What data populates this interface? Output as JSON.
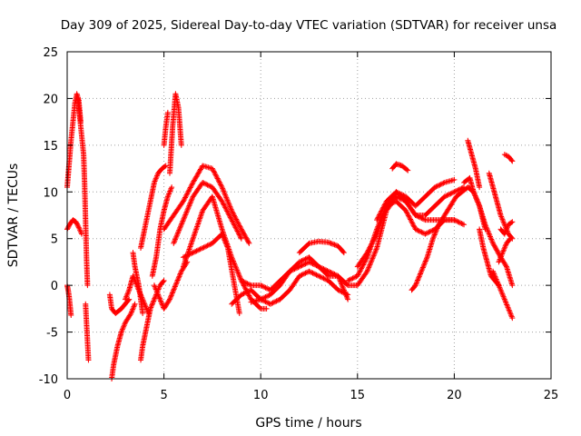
{
  "chart_data": {
    "type": "scatter",
    "title": "Day 309 of 2025, Sidereal Day-to-day VTEC variation (SDTVAR) for receiver unsa",
    "xlabel": "GPS time / hours",
    "ylabel": "SDTVAR / TECUs",
    "xlim": [
      0,
      25
    ],
    "ylim": [
      -10,
      25
    ],
    "xticks": [
      "0",
      "5",
      "10",
      "15",
      "20",
      "25"
    ],
    "yticks": [
      "-10",
      "-5",
      "0",
      "5",
      "10",
      "15",
      "20",
      "25"
    ],
    "grid": true,
    "marker": "+",
    "series_color": "#ff0000",
    "series": [
      {
        "name": "a1",
        "x": [
          0.0,
          0.1,
          0.2,
          0.3,
          0.4,
          0.5,
          0.6,
          0.7
        ],
        "y": [
          10.5,
          13,
          15.5,
          17.5,
          19.5,
          20.5,
          19.8,
          17.5
        ]
      },
      {
        "name": "a2",
        "x": [
          0.55,
          0.65,
          0.75,
          0.85,
          0.9,
          0.95,
          1.0,
          1.05
        ],
        "y": [
          20,
          18,
          16,
          14,
          11,
          7,
          3,
          0
        ]
      },
      {
        "name": "a3",
        "x": [
          0.0,
          0.15,
          0.3,
          0.45,
          0.6,
          0.75
        ],
        "y": [
          6,
          6.6,
          7,
          6.8,
          6.2,
          5.5
        ]
      },
      {
        "name": "a4",
        "x": [
          0.0,
          0.05,
          0.1,
          0.15,
          0.2
        ],
        "y": [
          0,
          -0.5,
          -1.2,
          -2.2,
          -3.2
        ]
      },
      {
        "name": "a5",
        "x": [
          0.95,
          1.0,
          1.05,
          1.1
        ],
        "y": [
          -2,
          -4,
          -6,
          -8
        ]
      },
      {
        "name": "b1",
        "x": [
          2.2,
          2.3,
          2.5,
          2.8,
          3.0,
          3.2
        ],
        "y": [
          -1,
          -2.5,
          -3,
          -2.5,
          -2,
          -1.5
        ]
      },
      {
        "name": "b2",
        "x": [
          2.3,
          2.4,
          2.6,
          2.8,
          3.0,
          3.3,
          3.5
        ],
        "y": [
          -10,
          -8.5,
          -6.5,
          -5,
          -4,
          -3,
          -2
        ]
      },
      {
        "name": "b3",
        "x": [
          3.0,
          3.2,
          3.4,
          3.6,
          3.8,
          4.0,
          4.2
        ],
        "y": [
          -1.5,
          -0.5,
          1,
          0,
          -1,
          -2,
          -3
        ]
      },
      {
        "name": "b4",
        "x": [
          3.8,
          3.9,
          4.1,
          4.3,
          4.6,
          4.8,
          5.0
        ],
        "y": [
          -8,
          -6.5,
          -4.5,
          -2.5,
          -1,
          0,
          0.5
        ]
      },
      {
        "name": "b5",
        "x": [
          3.4,
          3.5,
          3.7,
          3.8,
          3.9
        ],
        "y": [
          3.5,
          2,
          0,
          -1.5,
          -3
        ]
      },
      {
        "name": "c1",
        "x": [
          3.8,
          4.0,
          4.3,
          4.5,
          4.7,
          4.9,
          5.1
        ],
        "y": [
          4,
          6,
          9,
          11,
          12,
          12.5,
          12.8
        ]
      },
      {
        "name": "c2",
        "x": [
          4.4,
          4.6,
          4.8,
          5.0,
          5.2,
          5.4
        ],
        "y": [
          1,
          3,
          6,
          8,
          9.5,
          10.5
        ]
      },
      {
        "name": "c3",
        "x": [
          5.3,
          5.45,
          5.6,
          5.75,
          5.9
        ],
        "y": [
          12,
          17,
          20.5,
          19,
          15
        ]
      },
      {
        "name": "c4",
        "x": [
          5.0,
          5.1,
          5.2
        ],
        "y": [
          15,
          17,
          18.5
        ]
      },
      {
        "name": "c5",
        "x": [
          4.5,
          4.7,
          5.0,
          5.3,
          5.6,
          5.9,
          6.2
        ],
        "y": [
          0,
          -1,
          -2.5,
          -1.5,
          0,
          1.5,
          2.5
        ]
      },
      {
        "name": "d1",
        "x": [
          5.0,
          5.5,
          6.0,
          6.5,
          7.0,
          7.5,
          8.0,
          8.5,
          9.0,
          9.4
        ],
        "y": [
          6,
          7.5,
          9,
          11,
          12.8,
          12.5,
          10.5,
          8,
          6,
          4.5
        ]
      },
      {
        "name": "d2",
        "x": [
          5.5,
          6.0,
          6.5,
          7.0,
          7.5,
          8.0,
          8.5,
          9.0
        ],
        "y": [
          4.5,
          7,
          9.5,
          11,
          10.5,
          9,
          7,
          5
        ]
      },
      {
        "name": "d3",
        "x": [
          6.0,
          6.5,
          7.0,
          7.5,
          8.0,
          8.5,
          9.0,
          9.5,
          10.0,
          10.3
        ],
        "y": [
          2,
          5,
          8,
          9.5,
          6,
          3,
          0.5,
          -1.5,
          -2.5,
          -2.5
        ]
      },
      {
        "name": "d4",
        "x": [
          6.0,
          6.5,
          7.0,
          7.5,
          8.0,
          8.3,
          8.6,
          8.9
        ],
        "y": [
          3,
          3.5,
          4,
          4.5,
          5.5,
          4,
          0.5,
          -3
        ]
      },
      {
        "name": "d5",
        "x": [
          8.5,
          9.0,
          9.5,
          10.0,
          10.5,
          11.0,
          11.5,
          12.0,
          12.5,
          13.0,
          13.5,
          14.0,
          14.5
        ],
        "y": [
          -2,
          -1,
          -0.5,
          -1.5,
          -2,
          -1.5,
          -0.5,
          1,
          1.5,
          1,
          0.5,
          -0.5,
          -1
        ]
      },
      {
        "name": "d6",
        "x": [
          9.5,
          10.0,
          10.5,
          11.0,
          11.5,
          12.0,
          12.5,
          13.0,
          13.5
        ],
        "y": [
          -1.8,
          -1.5,
          -1,
          0,
          1.5,
          2.5,
          3,
          2,
          1
        ]
      },
      {
        "name": "d7",
        "x": [
          9.0,
          9.5,
          10.0,
          10.5,
          11.0,
          11.5,
          12.0,
          12.5,
          13.0,
          13.5,
          14.0,
          14.5
        ],
        "y": [
          0.5,
          0,
          0,
          -0.5,
          0.5,
          1.5,
          2,
          2.5,
          2,
          1.5,
          1,
          -1.5
        ]
      },
      {
        "name": "d8",
        "x": [
          12.0,
          12.5,
          13.0,
          13.5,
          14.0,
          14.3
        ],
        "y": [
          3.5,
          4.5,
          4.7,
          4.6,
          4.2,
          3.5
        ]
      },
      {
        "name": "e1",
        "x": [
          13.5,
          14.0,
          14.5,
          15.0,
          15.5,
          16.0,
          16.5,
          17.0,
          17.5,
          18.0,
          18.5,
          19.0,
          19.5,
          20.0,
          20.5
        ],
        "y": [
          1,
          1,
          0,
          0,
          1.5,
          4,
          8,
          9.5,
          9,
          7.5,
          7,
          7,
          7,
          7,
          6.5
        ]
      },
      {
        "name": "e2",
        "x": [
          14.5,
          15.0,
          15.5,
          16.0,
          16.5,
          17.0,
          17.5,
          18.0,
          18.5,
          19.0,
          19.5,
          20.0
        ],
        "y": [
          0.5,
          1,
          3,
          6,
          8.5,
          9,
          8,
          6,
          5.5,
          6,
          7,
          7
        ]
      },
      {
        "name": "e3",
        "x": [
          15.0,
          15.5,
          16.0,
          16.5,
          17.0,
          17.5,
          18.0,
          18.5,
          19.0,
          19.5,
          20.0,
          20.5
        ],
        "y": [
          2,
          3.5,
          5.5,
          8.5,
          10,
          9,
          7.5,
          7.5,
          8.5,
          9.5,
          10,
          10.5
        ]
      },
      {
        "name": "e4",
        "x": [
          16.8,
          17.0,
          17.3,
          17.6
        ],
        "y": [
          12.5,
          13,
          12.8,
          12.3
        ]
      },
      {
        "name": "e5",
        "x": [
          17.8,
          18.0,
          18.3,
          18.6,
          18.9,
          19.2,
          19.5,
          19.8,
          20.1,
          20.4,
          20.7,
          21.0,
          21.3,
          21.6
        ],
        "y": [
          -0.5,
          0,
          1.5,
          3,
          5,
          6.5,
          7.5,
          8.5,
          9.5,
          10,
          10.5,
          10,
          8.5,
          6
        ]
      },
      {
        "name": "e6",
        "x": [
          16.0,
          16.5,
          17.0,
          17.5,
          18.0,
          18.5,
          19.0,
          19.5,
          20.0
        ],
        "y": [
          7,
          9,
          10,
          9.5,
          8.5,
          9.5,
          10.5,
          11,
          11.3
        ]
      },
      {
        "name": "f1",
        "x": [
          20.5,
          20.8,
          21.0,
          21.3,
          21.6,
          22.0,
          22.4,
          22.7,
          23.0
        ],
        "y": [
          11,
          11.5,
          10,
          8.5,
          6.5,
          4.5,
          3,
          2,
          0
        ]
      },
      {
        "name": "f2",
        "x": [
          20.7,
          20.9,
          21.1,
          21.3
        ],
        "y": [
          15.5,
          14,
          12.5,
          10.5
        ]
      },
      {
        "name": "f3",
        "x": [
          21.3,
          21.5,
          21.7,
          21.9,
          22.1,
          22.3
        ],
        "y": [
          6,
          4,
          2.5,
          1,
          0.5,
          0
        ]
      },
      {
        "name": "f4",
        "x": [
          22.0,
          22.2,
          22.4,
          22.6,
          22.8,
          23.0
        ],
        "y": [
          1.5,
          0.5,
          -0.5,
          -1.5,
          -2.5,
          -3.5
        ]
      },
      {
        "name": "f5",
        "x": [
          21.8,
          22.0,
          22.2,
          22.4,
          22.6,
          22.8,
          23.0
        ],
        "y": [
          12,
          10.5,
          9,
          7.5,
          6.5,
          5.5,
          5
        ]
      },
      {
        "name": "f6",
        "x": [
          22.6,
          22.8,
          23.0
        ],
        "y": [
          14,
          13.8,
          13.3
        ]
      },
      {
        "name": "f7",
        "x": [
          22.4,
          22.6,
          22.8,
          23.0
        ],
        "y": [
          6,
          5.5,
          6.5,
          6.8
        ]
      },
      {
        "name": "f8",
        "x": [
          22.3,
          22.5,
          22.7,
          22.9
        ],
        "y": [
          2.5,
          3.5,
          4.5,
          5
        ]
      }
    ]
  }
}
